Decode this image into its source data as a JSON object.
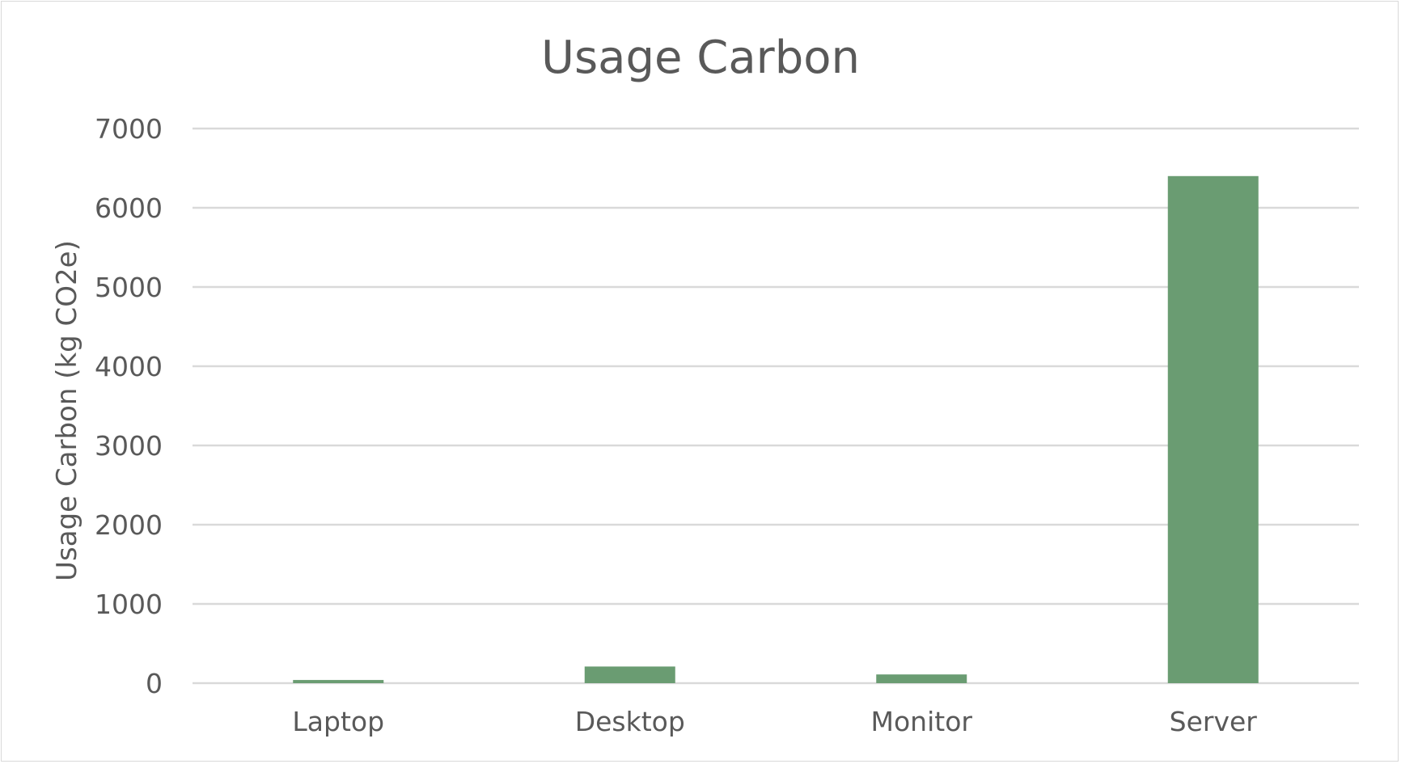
{
  "chart_data": {
    "type": "bar",
    "title": "Usage Carbon",
    "xlabel": "",
    "ylabel": "Usage Carbon (kg CO2e)",
    "categories": [
      "Laptop",
      "Desktop",
      "Monitor",
      "Server"
    ],
    "values": [
      40,
      210,
      110,
      6400
    ],
    "ylim": [
      0,
      7000
    ],
    "yticks": [
      0,
      1000,
      2000,
      3000,
      4000,
      5000,
      6000,
      7000
    ],
    "grid": true,
    "legend": "none",
    "colors": {
      "bar": "#6a9c72",
      "grid": "#d9d9d9",
      "text": "#595959"
    }
  }
}
